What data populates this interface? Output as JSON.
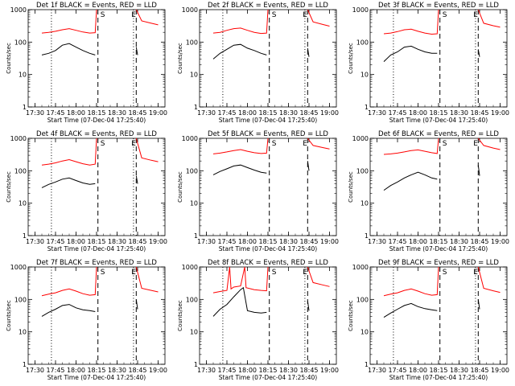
{
  "figure": {
    "start_time_label": "Start Time (07-Dec-04 17:25:40)",
    "ylabel": "Counts/sec",
    "x_ticks": [
      "17:30",
      "17:45",
      "18:00",
      "18:15",
      "18:30",
      "18:45",
      "19:00"
    ],
    "y_ticks": [
      "1",
      "10",
      "100",
      "1000"
    ],
    "colors": {
      "events": "#000000",
      "lld": "#ff0000",
      "axis": "#000000"
    }
  },
  "chart_data": [
    {
      "type": "line",
      "title": "Det 1f BLACK = Events, RED = LLD",
      "xlabel": "Start Time (07-Dec-04 17:25:40)",
      "ylabel": "Counts/sec",
      "x_ticks": [
        "17:30",
        "17:45",
        "18:00",
        "18:15",
        "18:30",
        "18:45",
        "19:00"
      ],
      "yscale": "log",
      "ylim": [
        1,
        1000
      ],
      "markers": [
        {
          "type": "dotted",
          "x": "17:42"
        },
        {
          "type": "dashed",
          "x": "18:16",
          "label": "S"
        },
        {
          "type": "dotted",
          "x": "18:42"
        },
        {
          "type": "dashed",
          "x": "18:44",
          "label": "E"
        }
      ],
      "series": [
        {
          "name": "Events",
          "color": "#000000",
          "x": [
            "17:35",
            "17:40",
            "17:45",
            "17:50",
            "17:55",
            "18:00",
            "18:05",
            "18:10",
            "18:14",
            "18:44",
            "18:45"
          ],
          "values": [
            40,
            45,
            55,
            80,
            90,
            70,
            55,
            45,
            40,
            70,
            40
          ]
        },
        {
          "name": "LLD",
          "color": "#ff0000",
          "x": [
            "17:35",
            "17:40",
            "17:45",
            "17:50",
            "17:55",
            "18:00",
            "18:05",
            "18:10",
            "18:14",
            "18:15",
            "18:44",
            "18:48",
            "18:55",
            "19:00"
          ],
          "values": [
            190,
            200,
            215,
            240,
            260,
            230,
            205,
            190,
            195,
            1000,
            1000,
            450,
            380,
            340
          ]
        }
      ]
    },
    {
      "type": "line",
      "title": "Det 2f BLACK = Events, RED = LLD",
      "xlabel": "Start Time (07-Dec-04 17:25:40)",
      "ylabel": "Counts/sec",
      "x_ticks": [
        "17:30",
        "17:45",
        "18:00",
        "18:15",
        "18:30",
        "18:45",
        "19:00"
      ],
      "yscale": "log",
      "ylim": [
        1,
        1000
      ],
      "markers": [
        {
          "type": "dotted",
          "x": "17:42"
        },
        {
          "type": "dashed",
          "x": "18:16",
          "label": "S"
        },
        {
          "type": "dotted",
          "x": "18:42"
        },
        {
          "type": "dashed",
          "x": "18:44",
          "label": "E"
        }
      ],
      "series": [
        {
          "name": "Events",
          "color": "#000000",
          "x": [
            "17:35",
            "17:40",
            "17:45",
            "17:50",
            "17:55",
            "18:00",
            "18:05",
            "18:10",
            "18:14",
            "18:44",
            "18:45"
          ],
          "values": [
            30,
            45,
            60,
            80,
            85,
            65,
            55,
            45,
            40,
            65,
            35
          ]
        },
        {
          "name": "LLD",
          "color": "#ff0000",
          "x": [
            "17:35",
            "17:40",
            "17:45",
            "17:50",
            "17:55",
            "18:00",
            "18:05",
            "18:10",
            "18:14",
            "18:15",
            "18:44",
            "18:48",
            "18:55",
            "19:00"
          ],
          "values": [
            190,
            200,
            230,
            260,
            270,
            230,
            200,
            185,
            190,
            1000,
            1000,
            420,
            350,
            310
          ]
        }
      ]
    },
    {
      "type": "line",
      "title": "Det 3f BLACK = Events, RED = LLD",
      "xlabel": "Start Time (07-Dec-04 17:25:40)",
      "ylabel": "Counts/sec",
      "x_ticks": [
        "17:30",
        "17:45",
        "18:00",
        "18:15",
        "18:30",
        "18:45",
        "19:00"
      ],
      "yscale": "log",
      "ylim": [
        1,
        1000
      ],
      "markers": [
        {
          "type": "dotted",
          "x": "17:42"
        },
        {
          "type": "dashed",
          "x": "18:16",
          "label": "S"
        },
        {
          "type": "dotted",
          "x": "18:42"
        },
        {
          "type": "dashed",
          "x": "18:44",
          "label": "E"
        }
      ],
      "series": [
        {
          "name": "Events",
          "color": "#000000",
          "x": [
            "17:35",
            "17:40",
            "17:45",
            "17:50",
            "17:55",
            "18:00",
            "18:05",
            "18:10",
            "18:14",
            "18:44",
            "18:45"
          ],
          "values": [
            25,
            40,
            50,
            70,
            75,
            60,
            50,
            45,
            45,
            60,
            35
          ]
        },
        {
          "name": "LLD",
          "color": "#ff0000",
          "x": [
            "17:35",
            "17:40",
            "17:45",
            "17:50",
            "17:55",
            "18:00",
            "18:05",
            "18:10",
            "18:14",
            "18:15",
            "18:44",
            "18:48",
            "18:55",
            "19:00"
          ],
          "values": [
            180,
            190,
            210,
            240,
            250,
            215,
            190,
            175,
            180,
            1000,
            1000,
            380,
            320,
            290
          ]
        }
      ]
    },
    {
      "type": "line",
      "title": "Det 4f BLACK = Events, RED = LLD",
      "xlabel": "Start Time (07-Dec-04 17:25:40)",
      "ylabel": "Counts/sec",
      "x_ticks": [
        "17:30",
        "17:45",
        "18:00",
        "18:15",
        "18:30",
        "18:45",
        "19:00"
      ],
      "yscale": "log",
      "ylim": [
        1,
        1000
      ],
      "markers": [
        {
          "type": "dotted",
          "x": "17:42"
        },
        {
          "type": "dashed",
          "x": "18:16",
          "label": "S"
        },
        {
          "type": "dotted",
          "x": "18:42"
        },
        {
          "type": "dashed",
          "x": "18:44",
          "label": "E"
        }
      ],
      "series": [
        {
          "name": "Events",
          "color": "#000000",
          "x": [
            "17:35",
            "17:40",
            "17:45",
            "17:50",
            "17:55",
            "18:00",
            "18:05",
            "18:10",
            "18:14",
            "18:44",
            "18:45"
          ],
          "values": [
            30,
            38,
            45,
            55,
            60,
            50,
            42,
            38,
            40,
            70,
            40
          ]
        },
        {
          "name": "LLD",
          "color": "#ff0000",
          "x": [
            "17:35",
            "17:40",
            "17:45",
            "17:50",
            "17:55",
            "18:00",
            "18:05",
            "18:10",
            "18:14",
            "18:15",
            "18:44",
            "18:48",
            "18:55",
            "19:00"
          ],
          "values": [
            150,
            160,
            175,
            200,
            220,
            190,
            165,
            150,
            160,
            1000,
            1000,
            250,
            210,
            190
          ]
        }
      ]
    },
    {
      "type": "line",
      "title": "Det 5f BLACK = Events, RED = LLD",
      "xlabel": "Start Time (07-Dec-04 17:25:40)",
      "ylabel": "Counts/sec",
      "x_ticks": [
        "17:30",
        "17:45",
        "18:00",
        "18:15",
        "18:30",
        "18:45",
        "19:00"
      ],
      "yscale": "log",
      "ylim": [
        1,
        1000
      ],
      "markers": [
        {
          "type": "dashed",
          "x": "18:16",
          "label": "S"
        },
        {
          "type": "dashed",
          "x": "18:44",
          "label": "E"
        }
      ],
      "series": [
        {
          "name": "Events",
          "color": "#000000",
          "x": [
            "17:35",
            "17:40",
            "17:45",
            "17:50",
            "17:55",
            "18:00",
            "18:05",
            "18:10",
            "18:14",
            "18:44",
            "18:45"
          ],
          "values": [
            75,
            95,
            115,
            140,
            150,
            125,
            105,
            90,
            85,
            200,
            100
          ]
        },
        {
          "name": "LLD",
          "color": "#ff0000",
          "x": [
            "17:35",
            "17:40",
            "17:45",
            "17:50",
            "17:55",
            "18:00",
            "18:05",
            "18:10",
            "18:14",
            "18:15",
            "18:44",
            "18:48",
            "18:55",
            "19:00"
          ],
          "values": [
            330,
            350,
            380,
            420,
            450,
            400,
            360,
            340,
            350,
            1000,
            1000,
            600,
            520,
            470
          ]
        }
      ]
    },
    {
      "type": "line",
      "title": "Det 6f BLACK = Events, RED = LLD",
      "xlabel": "Start Time (07-Dec-04 17:25:40)",
      "ylabel": "Counts/sec",
      "x_ticks": [
        "17:30",
        "17:45",
        "18:00",
        "18:15",
        "18:30",
        "18:45",
        "19:00"
      ],
      "yscale": "log",
      "ylim": [
        1,
        1000
      ],
      "markers": [
        {
          "type": "dashed",
          "x": "18:16",
          "label": "S"
        },
        {
          "type": "dashed",
          "x": "18:44",
          "label": "E"
        }
      ],
      "series": [
        {
          "name": "Events",
          "color": "#000000",
          "x": [
            "17:35",
            "17:40",
            "17:45",
            "17:50",
            "17:55",
            "18:00",
            "18:05",
            "18:10",
            "18:14",
            "18:44",
            "18:45"
          ],
          "values": [
            25,
            35,
            45,
            60,
            75,
            90,
            75,
            60,
            55,
            150,
            70
          ]
        },
        {
          "name": "LLD",
          "color": "#ff0000",
          "x": [
            "17:35",
            "17:40",
            "17:45",
            "17:50",
            "17:55",
            "18:00",
            "18:05",
            "18:10",
            "18:14",
            "18:15",
            "18:44",
            "18:48",
            "18:55",
            "19:00"
          ],
          "values": [
            320,
            330,
            350,
            380,
            420,
            440,
            400,
            360,
            340,
            1000,
            1000,
            600,
            500,
            450
          ]
        }
      ]
    },
    {
      "type": "line",
      "title": "Det 7f BLACK = Events, RED = LLD",
      "xlabel": "Start Time (07-Dec-04 17:25:40)",
      "ylabel": "Counts/sec",
      "x_ticks": [
        "17:30",
        "17:45",
        "18:00",
        "18:15",
        "18:30",
        "18:45",
        "19:00"
      ],
      "yscale": "log",
      "ylim": [
        1,
        1000
      ],
      "markers": [
        {
          "type": "dotted",
          "x": "17:42"
        },
        {
          "type": "dashed",
          "x": "18:16",
          "label": "S"
        },
        {
          "type": "dotted",
          "x": "18:42"
        },
        {
          "type": "dashed",
          "x": "18:44",
          "label": "E"
        }
      ],
      "series": [
        {
          "name": "Events",
          "color": "#000000",
          "x": [
            "17:35",
            "17:40",
            "17:45",
            "17:50",
            "17:55",
            "18:00",
            "18:05",
            "18:10",
            "18:14",
            "18:44",
            "18:45"
          ],
          "values": [
            30,
            40,
            50,
            65,
            70,
            55,
            48,
            45,
            42,
            100,
            50
          ]
        },
        {
          "name": "LLD",
          "color": "#ff0000",
          "x": [
            "17:35",
            "17:40",
            "17:45",
            "17:50",
            "17:55",
            "18:00",
            "18:05",
            "18:10",
            "18:14",
            "18:15",
            "18:44",
            "18:48",
            "18:55",
            "19:00"
          ],
          "values": [
            130,
            145,
            160,
            190,
            210,
            180,
            150,
            135,
            140,
            1000,
            1000,
            220,
            190,
            170
          ]
        }
      ]
    },
    {
      "type": "line",
      "title": "Det 8f BLACK = Events, RED = LLD",
      "xlabel": "Start Time (07-Dec-04 17:25:40)",
      "ylabel": "Counts/sec",
      "x_ticks": [
        "17:30",
        "17:45",
        "18:00",
        "18:15",
        "18:30",
        "18:45",
        "19:00"
      ],
      "yscale": "log",
      "ylim": [
        1,
        1000
      ],
      "markers": [
        {
          "type": "dotted",
          "x": "17:42"
        },
        {
          "type": "dashed",
          "x": "18:16",
          "label": "S"
        },
        {
          "type": "dotted",
          "x": "18:42"
        },
        {
          "type": "dashed",
          "x": "18:44",
          "label": "E"
        }
      ],
      "series": [
        {
          "name": "Events",
          "color": "#000000",
          "x": [
            "17:35",
            "17:40",
            "17:45",
            "17:50",
            "17:55",
            "17:57",
            "18:00",
            "18:05",
            "18:10",
            "18:14",
            "18:44",
            "18:45"
          ],
          "values": [
            30,
            50,
            70,
            120,
            200,
            230,
            45,
            40,
            38,
            40,
            90,
            45
          ]
        },
        {
          "name": "LLD",
          "color": "#ff0000",
          "x": [
            "17:35",
            "17:40",
            "17:45",
            "17:47",
            "17:48",
            "17:50",
            "17:55",
            "17:58",
            "17:59",
            "18:05",
            "18:10",
            "18:14",
            "18:15",
            "18:44",
            "18:48",
            "18:55",
            "19:00"
          ],
          "values": [
            160,
            175,
            190,
            1000,
            210,
            240,
            260,
            1000,
            230,
            200,
            190,
            185,
            1000,
            1000,
            330,
            280,
            250
          ]
        }
      ]
    },
    {
      "type": "line",
      "title": "Det 9f BLACK = Events, RED = LLD",
      "xlabel": "Start Time (07-Dec-04 17:25:40)",
      "ylabel": "Counts/sec",
      "x_ticks": [
        "17:30",
        "17:45",
        "18:00",
        "18:15",
        "18:30",
        "18:45",
        "19:00"
      ],
      "yscale": "log",
      "ylim": [
        1,
        1000
      ],
      "markers": [
        {
          "type": "dotted",
          "x": "17:42"
        },
        {
          "type": "dashed",
          "x": "18:16",
          "label": "S"
        },
        {
          "type": "dotted",
          "x": "18:42"
        },
        {
          "type": "dashed",
          "x": "18:44",
          "label": "E"
        }
      ],
      "series": [
        {
          "name": "Events",
          "color": "#000000",
          "x": [
            "17:35",
            "17:40",
            "17:45",
            "17:50",
            "17:55",
            "18:00",
            "18:05",
            "18:10",
            "18:14",
            "18:44",
            "18:45"
          ],
          "values": [
            28,
            38,
            50,
            65,
            75,
            60,
            52,
            48,
            45,
            100,
            50
          ]
        },
        {
          "name": "LLD",
          "color": "#ff0000",
          "x": [
            "17:35",
            "17:40",
            "17:45",
            "17:50",
            "17:55",
            "18:00",
            "18:05",
            "18:10",
            "18:14",
            "18:15",
            "18:44",
            "18:48",
            "18:55",
            "19:00"
          ],
          "values": [
            130,
            145,
            160,
            190,
            210,
            180,
            150,
            135,
            140,
            1000,
            1000,
            220,
            185,
            165
          ]
        }
      ]
    }
  ]
}
